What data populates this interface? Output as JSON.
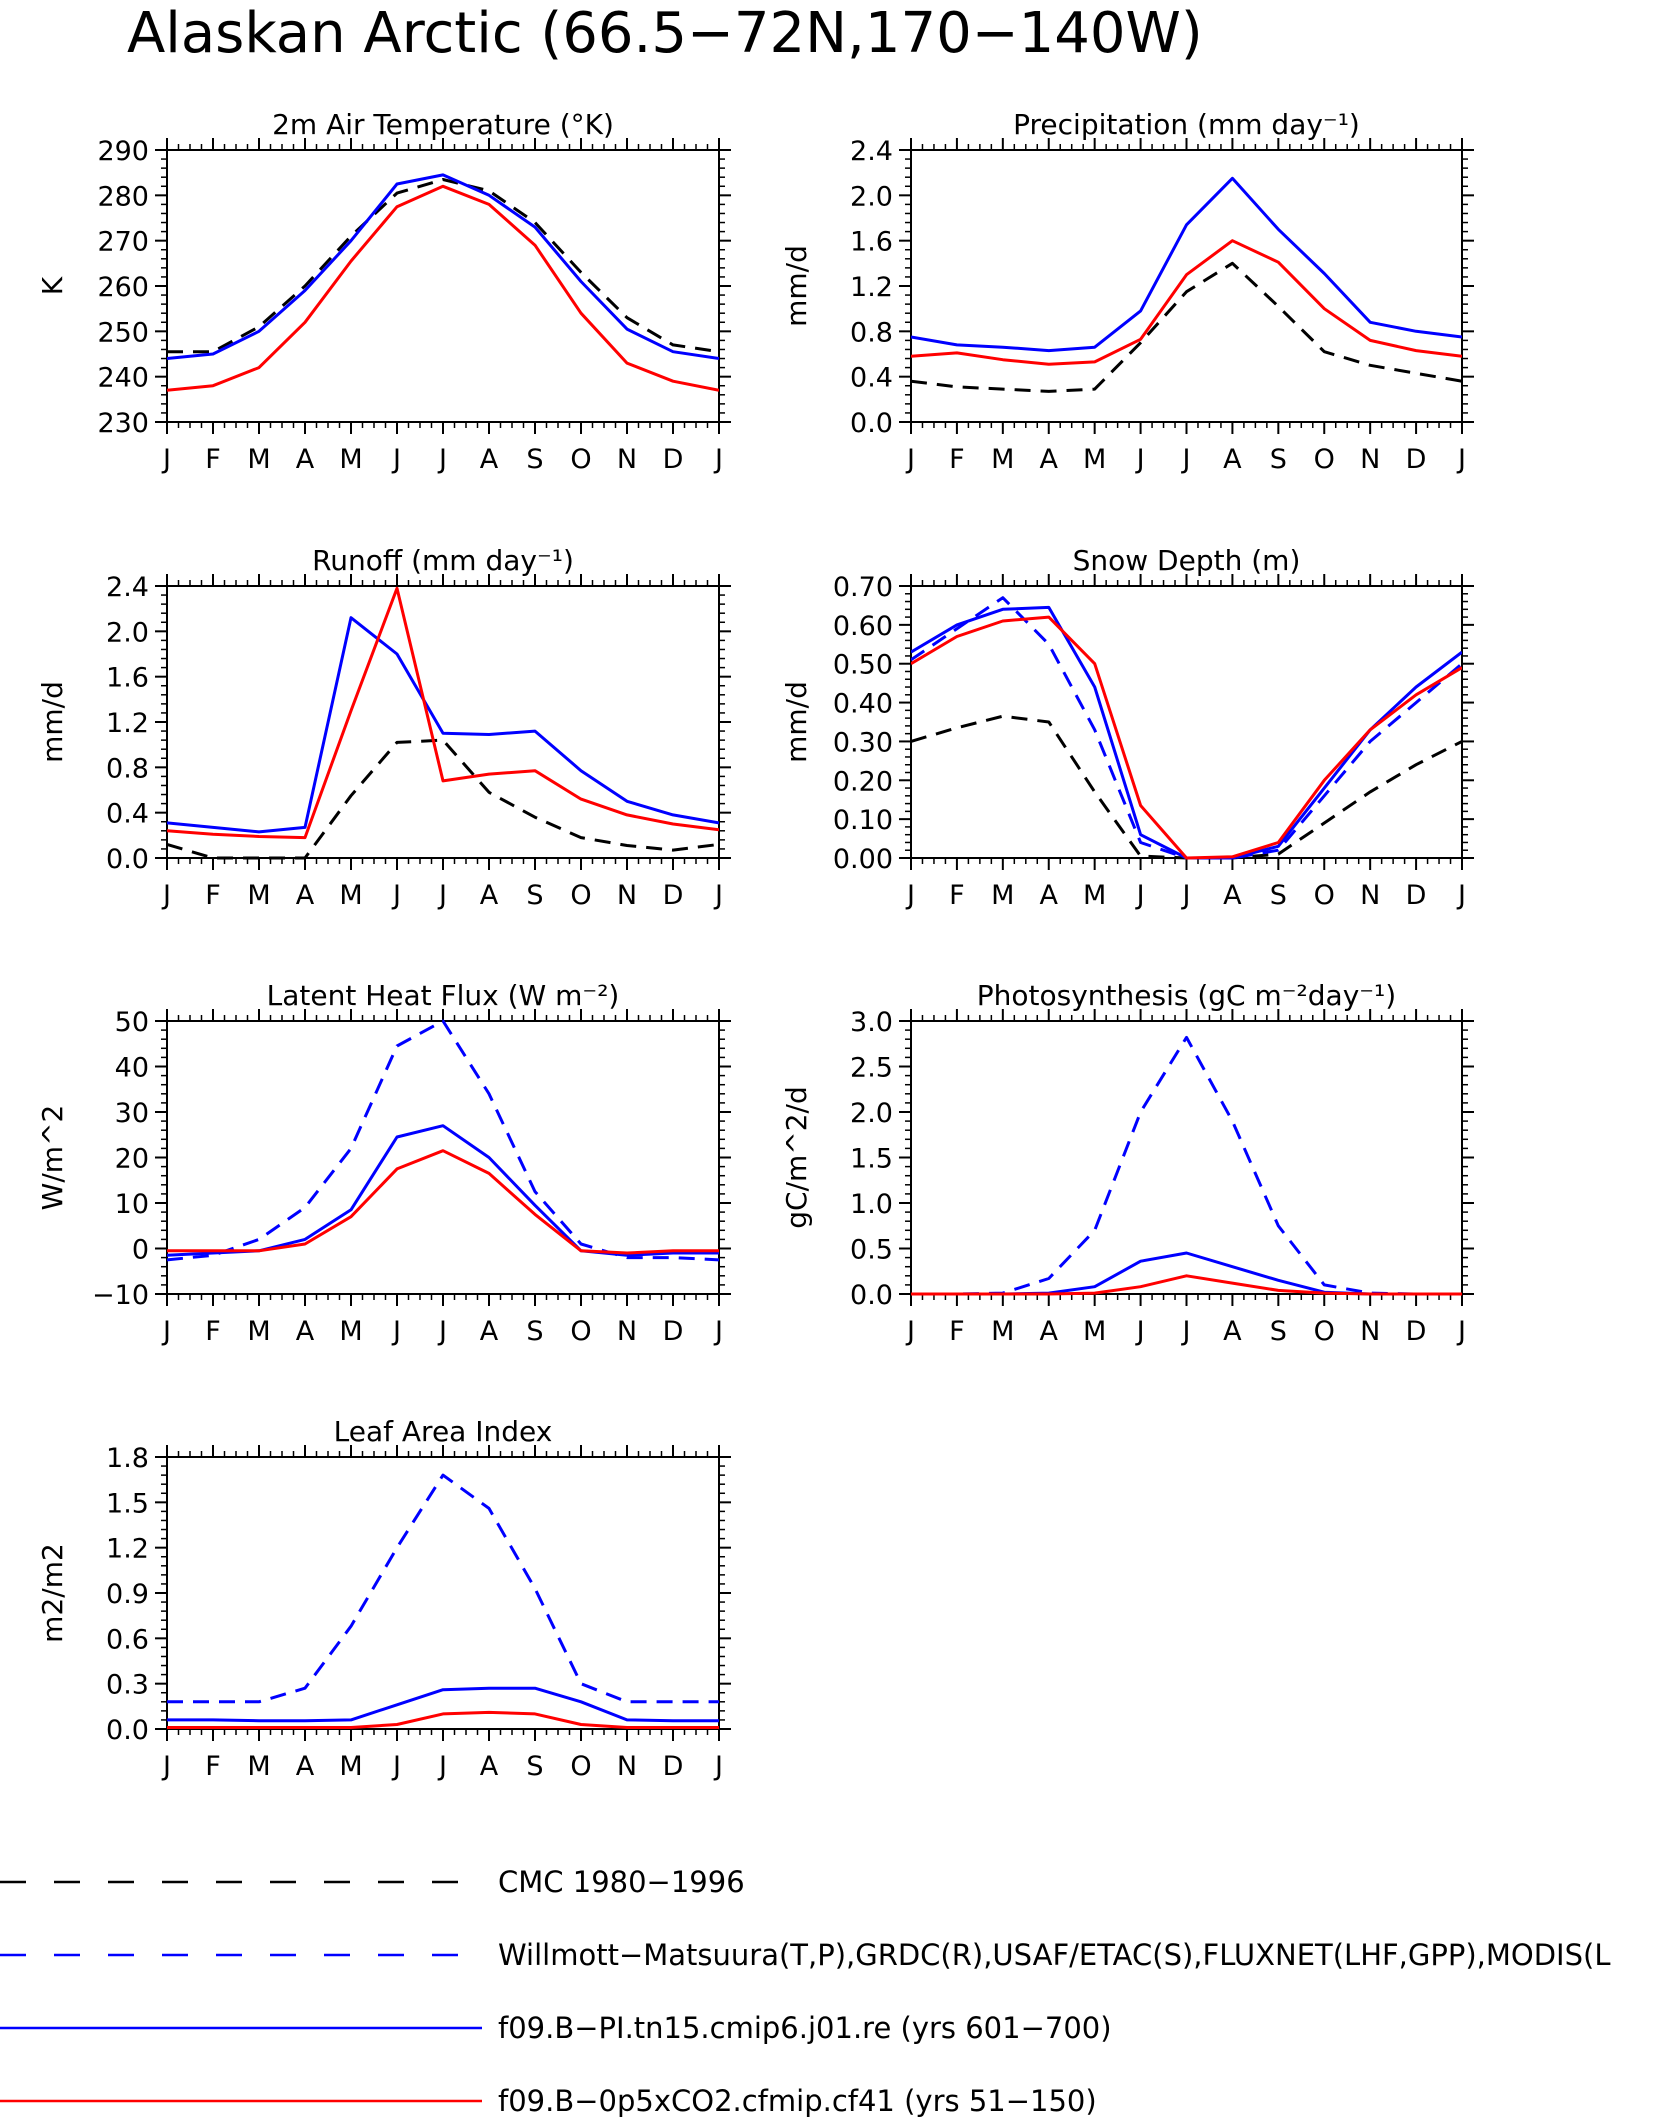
{
  "figure_title": "Alaskan Arctic (66.5−72N,170−140W)",
  "colors": {
    "obs_black": "#000000",
    "obs_blue": "#0000ff",
    "model_blue": "#0000ff",
    "model_red": "#ff0000"
  },
  "legend": [
    {
      "label": "CMC 1980−1996",
      "color": "#000000",
      "dash": true
    },
    {
      "label": "Willmott−Matsuura(T,P),GRDC(R),USAF/ETAC(S),FLUXNET(LHF,GPP),MODIS(L",
      "color": "#0000ff",
      "dash": true
    },
    {
      "label": "f09.B−PI.tn15.cmip6.j01.re (yrs 601−700)",
      "color": "#0000ff",
      "dash": false
    },
    {
      "label": "f09.B−0p5xCO2.cfmip.cf41 (yrs 51−150)",
      "color": "#ff0000",
      "dash": false
    }
  ],
  "chart_data": [
    {
      "type": "line",
      "title": "2m Air Temperature (°K)",
      "ylabel": "K",
      "x": [
        "J",
        "F",
        "M",
        "A",
        "M",
        "J",
        "J",
        "A",
        "S",
        "O",
        "N",
        "D",
        "J"
      ],
      "ylim": [
        230,
        290
      ],
      "yticks": [
        "230",
        "240",
        "250",
        "260",
        "270",
        "280",
        "290"
      ],
      "series": [
        {
          "color": "#000000",
          "dash": true,
          "values": [
            245.5,
            245.5,
            251,
            260,
            271,
            280.5,
            283.5,
            281,
            274,
            263,
            253,
            247,
            245.5
          ]
        },
        {
          "color": "#0000ff",
          "dash": false,
          "values": [
            244,
            245,
            250,
            259,
            270,
            282.5,
            284.5,
            280,
            273,
            261,
            250.5,
            245.5,
            244
          ]
        },
        {
          "color": "#ff0000",
          "dash": false,
          "values": [
            237,
            238,
            242,
            252,
            265.5,
            277.5,
            282,
            278,
            269,
            254,
            243,
            239,
            237
          ]
        }
      ]
    },
    {
      "type": "line",
      "title": "Precipitation (mm day⁻¹)",
      "ylabel": "mm/d",
      "x": [
        "J",
        "F",
        "M",
        "A",
        "M",
        "J",
        "J",
        "A",
        "S",
        "O",
        "N",
        "D",
        "J"
      ],
      "ylim": [
        0,
        2.4
      ],
      "yticks": [
        "0.0",
        "0.4",
        "0.8",
        "1.2",
        "1.6",
        "2.0",
        "2.4"
      ],
      "series": [
        {
          "color": "#000000",
          "dash": true,
          "values": [
            0.36,
            0.31,
            0.29,
            0.27,
            0.29,
            0.7,
            1.15,
            1.4,
            1.02,
            0.62,
            0.5,
            0.43,
            0.36
          ]
        },
        {
          "color": "#0000ff",
          "dash": false,
          "values": [
            0.75,
            0.68,
            0.66,
            0.63,
            0.66,
            0.98,
            1.74,
            2.15,
            1.7,
            1.31,
            0.88,
            0.8,
            0.75
          ]
        },
        {
          "color": "#ff0000",
          "dash": false,
          "values": [
            0.58,
            0.61,
            0.55,
            0.51,
            0.53,
            0.73,
            1.3,
            1.6,
            1.41,
            1.0,
            0.72,
            0.63,
            0.58
          ]
        }
      ]
    },
    {
      "type": "line",
      "title": "Runoff (mm day⁻¹)",
      "ylabel": "mm/d",
      "x": [
        "J",
        "F",
        "M",
        "A",
        "M",
        "J",
        "J",
        "A",
        "S",
        "O",
        "N",
        "D",
        "J"
      ],
      "ylim": [
        0,
        2.4
      ],
      "yticks": [
        "0.0",
        "0.4",
        "0.8",
        "1.2",
        "1.6",
        "2.0",
        "2.4"
      ],
      "series": [
        {
          "color": "#000000",
          "dash": true,
          "values": [
            0.12,
            0.0,
            0.0,
            0.0,
            0.55,
            1.02,
            1.04,
            0.58,
            0.36,
            0.18,
            0.11,
            0.07,
            0.12
          ]
        },
        {
          "color": "#0000ff",
          "dash": false,
          "values": [
            0.31,
            0.27,
            0.23,
            0.27,
            2.12,
            1.8,
            1.1,
            1.09,
            1.12,
            0.77,
            0.5,
            0.38,
            0.31
          ]
        },
        {
          "color": "#ff0000",
          "dash": false,
          "values": [
            0.24,
            0.21,
            0.19,
            0.18,
            1.3,
            2.38,
            0.68,
            0.74,
            0.77,
            0.52,
            0.38,
            0.3,
            0.25
          ]
        }
      ]
    },
    {
      "type": "line",
      "title": "Snow Depth (m)",
      "ylabel": "mm/d",
      "x": [
        "J",
        "F",
        "M",
        "A",
        "M",
        "J",
        "J",
        "A",
        "S",
        "O",
        "N",
        "D",
        "J"
      ],
      "ylim": [
        0,
        0.7
      ],
      "yticks": [
        "0.00",
        "0.10",
        "0.20",
        "0.30",
        "0.40",
        "0.50",
        "0.60",
        "0.70"
      ],
      "series": [
        {
          "color": "#000000",
          "dash": true,
          "values": [
            0.3,
            0.335,
            0.365,
            0.35,
            0.17,
            0.005,
            0.0,
            0.0,
            0.01,
            0.09,
            0.17,
            0.24,
            0.3
          ]
        },
        {
          "color": "#0000ff",
          "dash": true,
          "values": [
            0.51,
            0.59,
            0.67,
            0.55,
            0.33,
            0.04,
            0.0,
            0.0,
            0.02,
            0.16,
            0.3,
            0.4,
            0.5
          ]
        },
        {
          "color": "#0000ff",
          "dash": false,
          "values": [
            0.53,
            0.6,
            0.64,
            0.645,
            0.44,
            0.06,
            0.0,
            0.0,
            0.03,
            0.18,
            0.33,
            0.44,
            0.53
          ]
        },
        {
          "color": "#ff0000",
          "dash": false,
          "values": [
            0.5,
            0.57,
            0.61,
            0.62,
            0.5,
            0.135,
            0.0,
            0.003,
            0.04,
            0.2,
            0.33,
            0.42,
            0.49
          ]
        }
      ]
    },
    {
      "type": "line",
      "title": "Latent Heat Flux (W m⁻²)",
      "ylabel": "W/m^2",
      "x": [
        "J",
        "F",
        "M",
        "A",
        "M",
        "J",
        "J",
        "A",
        "S",
        "O",
        "N",
        "D",
        "J"
      ],
      "ylim": [
        -10,
        50
      ],
      "yticks": [
        "−10",
        "0",
        "10",
        "20",
        "30",
        "40",
        "50"
      ],
      "series": [
        {
          "color": "#0000ff",
          "dash": true,
          "values": [
            -2.5,
            -1.5,
            2,
            9,
            22,
            44.5,
            50,
            34,
            12.5,
            1,
            -2,
            -2,
            -2.5
          ]
        },
        {
          "color": "#0000ff",
          "dash": false,
          "values": [
            -1.5,
            -1,
            -0.5,
            2,
            8.5,
            24.5,
            27,
            20,
            9.5,
            -0.5,
            -1.5,
            -1,
            -1
          ]
        },
        {
          "color": "#ff0000",
          "dash": false,
          "values": [
            -0.5,
            -0.5,
            -0.5,
            1,
            7,
            17.5,
            21.5,
            16.5,
            7.5,
            -0.5,
            -1,
            -0.5,
            -0.5
          ]
        }
      ]
    },
    {
      "type": "line",
      "title": "Photosynthesis (gC m⁻²day⁻¹)",
      "ylabel": "gC/m^2/d",
      "x": [
        "J",
        "F",
        "M",
        "A",
        "M",
        "J",
        "J",
        "A",
        "S",
        "O",
        "N",
        "D",
        "J"
      ],
      "ylim": [
        0,
        3.0
      ],
      "yticks": [
        "0.0",
        "0.5",
        "1.0",
        "1.5",
        "2.0",
        "2.5",
        "3.0"
      ],
      "series": [
        {
          "color": "#0000ff",
          "dash": true,
          "values": [
            0.0,
            0.0,
            0.01,
            0.17,
            0.7,
            2.0,
            2.82,
            1.9,
            0.75,
            0.1,
            0.01,
            0.0,
            0.0
          ]
        },
        {
          "color": "#0000ff",
          "dash": false,
          "values": [
            0.0,
            0.0,
            0.0,
            0.01,
            0.08,
            0.36,
            0.45,
            0.3,
            0.15,
            0.02,
            0.0,
            0.0,
            0.0
          ]
        },
        {
          "color": "#ff0000",
          "dash": false,
          "values": [
            0.0,
            0.0,
            0.0,
            0.0,
            0.01,
            0.08,
            0.2,
            0.12,
            0.04,
            0.01,
            0.0,
            0.0,
            0.0
          ]
        }
      ]
    },
    {
      "type": "line",
      "title": "Leaf Area Index",
      "ylabel": "m2/m2",
      "x": [
        "J",
        "F",
        "M",
        "A",
        "M",
        "J",
        "J",
        "A",
        "S",
        "O",
        "N",
        "D",
        "J"
      ],
      "ylim": [
        0,
        1.8
      ],
      "yticks": [
        "0.0",
        "0.3",
        "0.6",
        "0.9",
        "1.2",
        "1.5",
        "1.8"
      ],
      "series": [
        {
          "color": "#0000ff",
          "dash": true,
          "values": [
            0.18,
            0.18,
            0.18,
            0.27,
            0.68,
            1.2,
            1.68,
            1.46,
            0.93,
            0.3,
            0.18,
            0.18,
            0.18
          ]
        },
        {
          "color": "#0000ff",
          "dash": false,
          "values": [
            0.06,
            0.06,
            0.055,
            0.055,
            0.06,
            0.16,
            0.26,
            0.27,
            0.27,
            0.18,
            0.06,
            0.055,
            0.055
          ]
        },
        {
          "color": "#ff0000",
          "dash": false,
          "values": [
            0.01,
            0.01,
            0.01,
            0.01,
            0.01,
            0.03,
            0.1,
            0.11,
            0.1,
            0.03,
            0.01,
            0.01,
            0.01
          ]
        }
      ]
    }
  ]
}
